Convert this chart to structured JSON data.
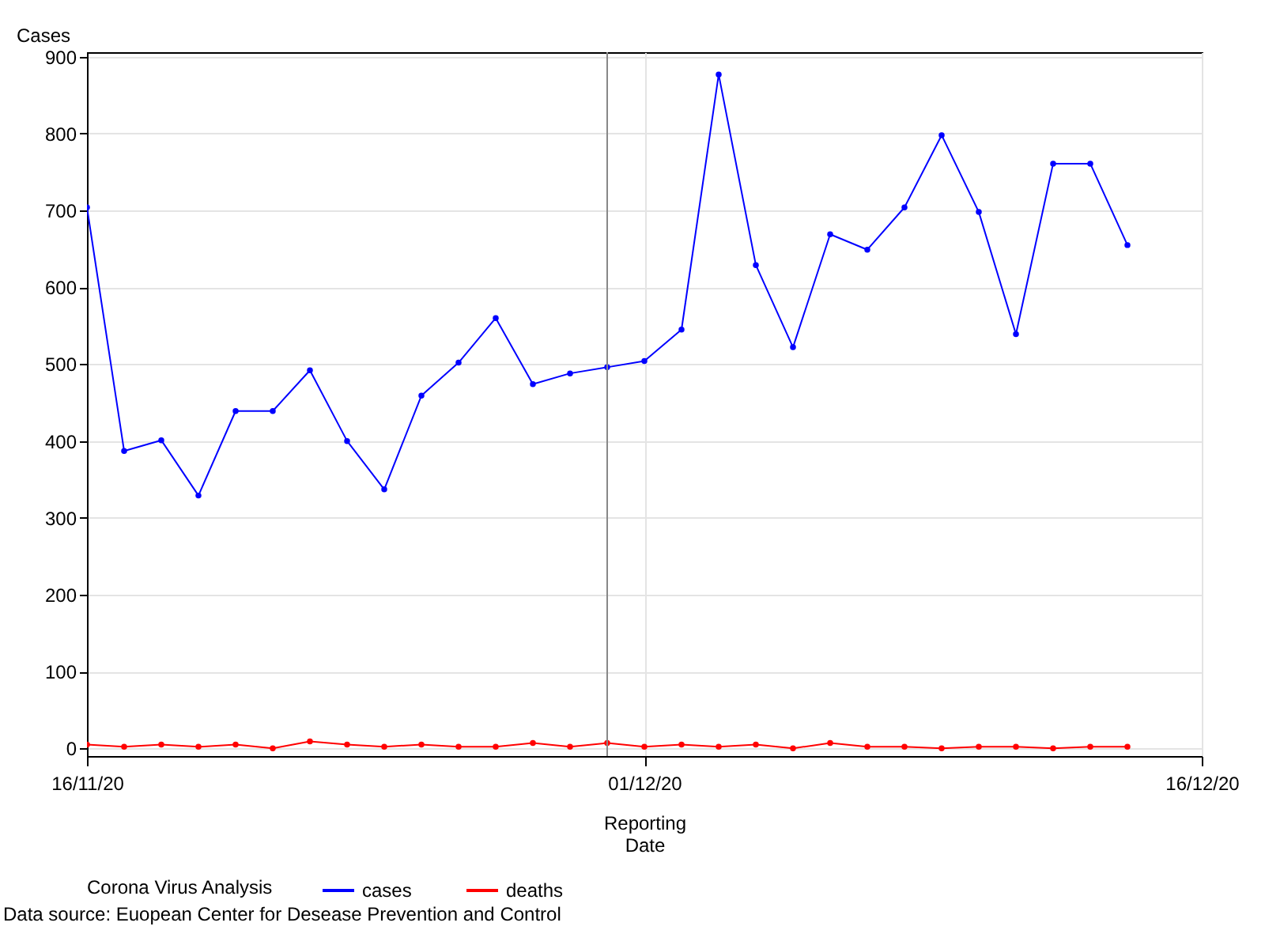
{
  "chart_data": {
    "type": "line",
    "xlabel": "Reporting Date",
    "ylabel": "Cases",
    "legend_title": "Corona Virus Analysis",
    "legend": "bottom",
    "grid": true,
    "marker": "circle",
    "line_style": "solid",
    "x": [
      "2020-11-16",
      "2020-11-17",
      "2020-11-18",
      "2020-11-19",
      "2020-11-20",
      "2020-11-21",
      "2020-11-22",
      "2020-11-23",
      "2020-11-24",
      "2020-11-25",
      "2020-11-26",
      "2020-11-27",
      "2020-11-28",
      "2020-11-29",
      "2020-11-30",
      "2020-12-01",
      "2020-12-02",
      "2020-12-03",
      "2020-12-04",
      "2020-12-05",
      "2020-12-06",
      "2020-12-07",
      "2020-12-08",
      "2020-12-09",
      "2020-12-10",
      "2020-12-11",
      "2020-12-12",
      "2020-12-13",
      "2020-12-14"
    ],
    "series": [
      {
        "name": "cases",
        "color": "#0000ff",
        "values": [
          704,
          387,
          401,
          329,
          439,
          439,
          492,
          400,
          337,
          459,
          502,
          560,
          474,
          488,
          496,
          504,
          545,
          877,
          629,
          522,
          669,
          649,
          704,
          798,
          698,
          539,
          761,
          761,
          655
        ]
      },
      {
        "name": "deaths",
        "color": "#ff0000",
        "values": [
          5,
          2,
          5,
          2,
          5,
          0,
          9,
          5,
          2,
          5,
          2,
          2,
          7,
          2,
          7,
          2,
          5,
          2,
          5,
          0,
          7,
          2,
          2,
          0,
          2,
          2,
          0,
          2,
          2
        ]
      }
    ],
    "xlim": [
      "2020-11-16",
      "2020-12-16"
    ],
    "xticks": [
      {
        "value": "2020-11-16",
        "label": "16/11/20"
      },
      {
        "value": "2020-12-01",
        "label": "01/12/20"
      },
      {
        "value": "2020-12-16",
        "label": "16/12/20"
      }
    ],
    "ylim": [
      -10,
      906
    ],
    "yticks": [
      0,
      100,
      200,
      300,
      400,
      500,
      600,
      700,
      800,
      900
    ],
    "ref_lines": [
      {
        "axis": "x",
        "value": "2020-11-30",
        "label": null,
        "color": "#888888"
      }
    ],
    "annotations": [
      "Data source: Euopean Center for Desease Prevention and Control"
    ]
  }
}
